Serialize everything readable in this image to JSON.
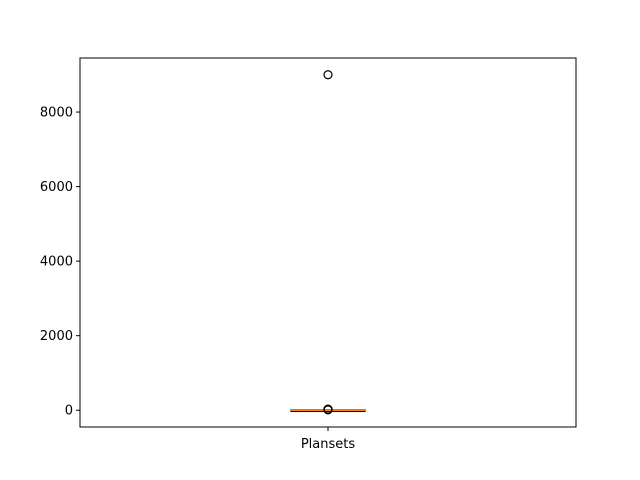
{
  "chart_data": {
    "type": "box",
    "categories": [
      "Plansets"
    ],
    "series": [
      {
        "category": "Plansets",
        "whisker_low": 0,
        "q1": 0,
        "median": 0,
        "q3": 0,
        "whisker_high": 0,
        "outliers": [
          9000,
          10,
          20,
          30
        ]
      }
    ],
    "ylim": [
      -450,
      9450
    ],
    "yticks": [
      0,
      2000,
      4000,
      6000,
      8000
    ],
    "ytick_labels": [
      "0",
      "2000",
      "4000",
      "6000",
      "8000"
    ],
    "grid": false,
    "colors": {
      "box": "#000000",
      "median": "#ff7f0e",
      "outlier_edge": "#000000",
      "frame": "#000000"
    }
  }
}
